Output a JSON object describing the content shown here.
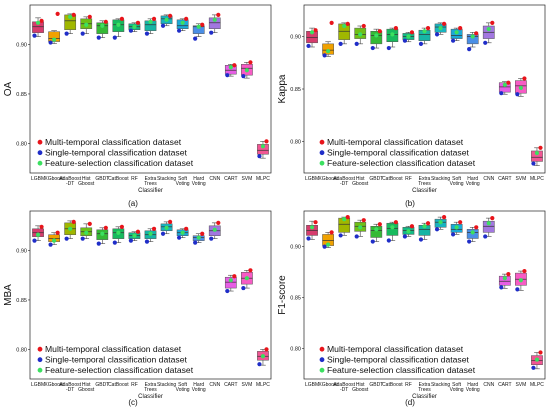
{
  "figure": {
    "legend": [
      {
        "label": "Multi-temporal classification dataset",
        "color": "#e8141b"
      },
      {
        "label": "Single-temporal classification dataset",
        "color": "#1f2dc8"
      },
      {
        "label": "Feature-selection  classification dataset",
        "color": "#3be060"
      }
    ]
  },
  "chart_data": [
    {
      "type": "box",
      "panel": "(a)",
      "ylabel": "OA",
      "xlabel": "Classifier",
      "ylim": [
        0.77,
        0.94
      ],
      "yticks": [
        "0.90",
        "0.85",
        "0.80"
      ],
      "categories": [
        "LGBM",
        "XGboost",
        "AdaBoost-DT",
        "Hist Gboost",
        "GBDT",
        "CatBoost",
        "RF",
        "Extra Trees",
        "Stacking",
        "Soft Voting",
        "Hard Voting",
        "CNN",
        "CART",
        "SVM",
        "MLPC"
      ],
      "box_colors": [
        "#d63c6d",
        "#f0a100",
        "#a0b700",
        "#6fbf16",
        "#35b936",
        "#18ba5e",
        "#13b987",
        "#16b5a5",
        "#19b3c0",
        "#1aa9d8",
        "#4a8fe6",
        "#a277e0",
        "#e75ee5",
        "#f75bc5",
        "#f15694"
      ],
      "boxes": [
        {
          "min": 0.908,
          "q1": 0.912,
          "median": 0.918,
          "q3": 0.923,
          "max": 0.927
        },
        {
          "min": 0.901,
          "q1": 0.903,
          "median": 0.906,
          "q3": 0.913,
          "max": 0.914
        },
        {
          "min": 0.911,
          "q1": 0.915,
          "median": 0.924,
          "q3": 0.93,
          "max": 0.931
        },
        {
          "min": 0.911,
          "q1": 0.916,
          "median": 0.921,
          "q3": 0.926,
          "max": 0.928
        },
        {
          "min": 0.907,
          "q1": 0.911,
          "median": 0.919,
          "q3": 0.922,
          "max": 0.924
        },
        {
          "min": 0.908,
          "q1": 0.913,
          "median": 0.92,
          "q3": 0.925,
          "max": 0.926
        },
        {
          "min": 0.913,
          "q1": 0.915,
          "median": 0.918,
          "q3": 0.921,
          "max": 0.922
        },
        {
          "min": 0.911,
          "q1": 0.914,
          "median": 0.92,
          "q3": 0.924,
          "max": 0.926
        },
        {
          "min": 0.919,
          "q1": 0.921,
          "median": 0.926,
          "q3": 0.929,
          "max": 0.93
        },
        {
          "min": 0.914,
          "q1": 0.916,
          "median": 0.919,
          "q3": 0.925,
          "max": 0.926
        },
        {
          "min": 0.908,
          "q1": 0.911,
          "median": 0.918,
          "q3": 0.919,
          "max": 0.921
        },
        {
          "min": 0.912,
          "q1": 0.916,
          "median": 0.922,
          "q3": 0.927,
          "max": 0.93
        },
        {
          "min": 0.868,
          "q1": 0.87,
          "median": 0.874,
          "q3": 0.879,
          "max": 0.88
        },
        {
          "min": 0.866,
          "q1": 0.869,
          "median": 0.876,
          "q3": 0.88,
          "max": 0.882
        },
        {
          "min": 0.785,
          "q1": 0.789,
          "median": 0.793,
          "q3": 0.799,
          "max": 0.802
        }
      ],
      "points": {
        "multi": [
          0.924,
          0.931,
          0.93,
          0.928,
          0.923,
          0.926,
          0.922,
          0.926,
          0.929,
          0.926,
          0.92,
          0.93,
          0.879,
          0.882,
          0.802
        ],
        "single": [
          0.909,
          0.902,
          0.911,
          0.911,
          0.907,
          0.907,
          0.914,
          0.911,
          0.919,
          0.914,
          0.906,
          0.912,
          0.869,
          0.868,
          0.787
        ],
        "feature": [
          0.922,
          0.905,
          0.928,
          0.92,
          0.919,
          0.92,
          0.918,
          0.923,
          0.925,
          0.922,
          0.918,
          0.925,
          0.877,
          0.874,
          0.797
        ]
      }
    },
    {
      "type": "box",
      "panel": "(b)",
      "ylabel": "Kappa",
      "xlabel": "Classifier",
      "ylim": [
        0.77,
        0.93
      ],
      "yticks": [
        "0.90",
        "0.85",
        "0.80"
      ],
      "categories": [
        "LGBM",
        "XGboost",
        "AdaBoost-DT",
        "Hist Gboost",
        "GBDT",
        "CatBoost",
        "RF",
        "Extra Trees",
        "Stacking",
        "Soft Voting",
        "Hard Voting",
        "CNN",
        "CART",
        "SVM",
        "MLPC"
      ],
      "box_colors": [
        "#d63c6d",
        "#f0a100",
        "#a0b700",
        "#6fbf16",
        "#35b936",
        "#18ba5e",
        "#13b987",
        "#16b5a5",
        "#19b3c0",
        "#1aa9d8",
        "#4a8fe6",
        "#a277e0",
        "#e75ee5",
        "#f75bc5",
        "#f15694"
      ],
      "boxes": [
        {
          "min": 0.89,
          "q1": 0.894,
          "median": 0.899,
          "q3": 0.905,
          "max": 0.908
        },
        {
          "min": 0.881,
          "q1": 0.883,
          "median": 0.887,
          "q3": 0.893,
          "max": 0.895
        },
        {
          "min": 0.893,
          "q1": 0.897,
          "median": 0.905,
          "q3": 0.912,
          "max": 0.913
        },
        {
          "min": 0.893,
          "q1": 0.898,
          "median": 0.902,
          "q3": 0.908,
          "max": 0.91
        },
        {
          "min": 0.889,
          "q1": 0.893,
          "median": 0.901,
          "q3": 0.905,
          "max": 0.907
        },
        {
          "min": 0.89,
          "q1": 0.895,
          "median": 0.902,
          "q3": 0.907,
          "max": 0.908
        },
        {
          "min": 0.895,
          "q1": 0.897,
          "median": 0.9,
          "q3": 0.903,
          "max": 0.904
        },
        {
          "min": 0.893,
          "q1": 0.896,
          "median": 0.902,
          "q3": 0.906,
          "max": 0.908
        },
        {
          "min": 0.902,
          "q1": 0.904,
          "median": 0.909,
          "q3": 0.912,
          "max": 0.913
        },
        {
          "min": 0.896,
          "q1": 0.898,
          "median": 0.901,
          "q3": 0.907,
          "max": 0.908
        },
        {
          "min": 0.89,
          "q1": 0.893,
          "median": 0.9,
          "q3": 0.902,
          "max": 0.904
        },
        {
          "min": 0.894,
          "q1": 0.898,
          "median": 0.904,
          "q3": 0.91,
          "max": 0.913
        },
        {
          "min": 0.845,
          "q1": 0.847,
          "median": 0.852,
          "q3": 0.856,
          "max": 0.857
        },
        {
          "min": 0.843,
          "q1": 0.846,
          "median": 0.853,
          "q3": 0.858,
          "max": 0.86
        },
        {
          "min": 0.777,
          "q1": 0.781,
          "median": 0.785,
          "q3": 0.791,
          "max": 0.794
        }
      ],
      "points": {
        "multi": [
          0.906,
          0.913,
          0.912,
          0.91,
          0.905,
          0.908,
          0.904,
          0.908,
          0.912,
          0.908,
          0.903,
          0.913,
          0.856,
          0.86,
          0.794
        ],
        "single": [
          0.891,
          0.882,
          0.893,
          0.893,
          0.889,
          0.889,
          0.896,
          0.893,
          0.902,
          0.896,
          0.888,
          0.894,
          0.846,
          0.845,
          0.779
        ],
        "feature": [
          0.904,
          0.886,
          0.91,
          0.902,
          0.901,
          0.902,
          0.9,
          0.905,
          0.908,
          0.904,
          0.9,
          0.907,
          0.854,
          0.851,
          0.789
        ]
      }
    },
    {
      "type": "box",
      "panel": "(c)",
      "ylabel": "MBA",
      "xlabel": "Classifier",
      "ylim": [
        0.77,
        0.94
      ],
      "yticks": [
        "0.90",
        "0.85",
        "0.80"
      ],
      "categories": [
        "LGBM",
        "XGboost",
        "AdaBoost-DT",
        "Hist Gboost",
        "GBDT",
        "CatBoost",
        "RF",
        "Extra Trees",
        "Stacking",
        "Soft Voting",
        "Hard Voting",
        "CNN",
        "CART",
        "SVM",
        "MLPC"
      ],
      "box_colors": [
        "#d63c6d",
        "#f0a100",
        "#a0b700",
        "#6fbf16",
        "#35b936",
        "#18ba5e",
        "#13b987",
        "#16b5a5",
        "#19b3c0",
        "#1aa9d8",
        "#4a8fe6",
        "#a277e0",
        "#e75ee5",
        "#f75bc5",
        "#f15694"
      ],
      "boxes": [
        {
          "min": 0.91,
          "q1": 0.914,
          "median": 0.918,
          "q3": 0.922,
          "max": 0.925
        },
        {
          "min": 0.906,
          "q1": 0.909,
          "median": 0.912,
          "q3": 0.916,
          "max": 0.918
        },
        {
          "min": 0.912,
          "q1": 0.916,
          "median": 0.922,
          "q3": 0.928,
          "max": 0.93
        },
        {
          "min": 0.912,
          "q1": 0.915,
          "median": 0.919,
          "q3": 0.923,
          "max": 0.927
        },
        {
          "min": 0.907,
          "q1": 0.911,
          "median": 0.917,
          "q3": 0.921,
          "max": 0.923
        },
        {
          "min": 0.908,
          "q1": 0.912,
          "median": 0.918,
          "q3": 0.922,
          "max": 0.924
        },
        {
          "min": 0.91,
          "q1": 0.912,
          "median": 0.915,
          "q3": 0.918,
          "max": 0.919
        },
        {
          "min": 0.909,
          "q1": 0.912,
          "median": 0.916,
          "q3": 0.92,
          "max": 0.922
        },
        {
          "min": 0.917,
          "q1": 0.92,
          "median": 0.924,
          "q3": 0.927,
          "max": 0.929
        },
        {
          "min": 0.913,
          "q1": 0.915,
          "median": 0.918,
          "q3": 0.921,
          "max": 0.922
        },
        {
          "min": 0.908,
          "q1": 0.91,
          "median": 0.913,
          "q3": 0.915,
          "max": 0.917
        },
        {
          "min": 0.912,
          "q1": 0.915,
          "median": 0.92,
          "q3": 0.925,
          "max": 0.928
        },
        {
          "min": 0.859,
          "q1": 0.862,
          "median": 0.868,
          "q3": 0.873,
          "max": 0.875
        },
        {
          "min": 0.862,
          "q1": 0.866,
          "median": 0.872,
          "q3": 0.878,
          "max": 0.88
        },
        {
          "min": 0.784,
          "q1": 0.789,
          "median": 0.793,
          "q3": 0.798,
          "max": 0.8
        }
      ],
      "points": {
        "multi": [
          0.924,
          0.918,
          0.929,
          0.927,
          0.923,
          0.924,
          0.919,
          0.922,
          0.929,
          0.922,
          0.917,
          0.928,
          0.874,
          0.88,
          0.8
        ],
        "single": [
          0.91,
          0.906,
          0.912,
          0.912,
          0.907,
          0.908,
          0.91,
          0.909,
          0.917,
          0.913,
          0.908,
          0.912,
          0.859,
          0.862,
          0.785
        ],
        "feature": [
          0.916,
          0.91,
          0.922,
          0.918,
          0.917,
          0.918,
          0.915,
          0.917,
          0.923,
          0.918,
          0.913,
          0.921,
          0.87,
          0.872,
          0.793
        ]
      }
    },
    {
      "type": "box",
      "panel": "(d)",
      "ylabel": "F1-score",
      "xlabel": "Classifier",
      "ylim": [
        0.77,
        0.935
      ],
      "yticks": [
        "0.90",
        "0.85",
        "0.80"
      ],
      "categories": [
        "LGBM",
        "XGboost",
        "AdaBoost-DT",
        "Hist Gboost",
        "GBDT",
        "CatBoost",
        "RF",
        "Extra Trees",
        "Stacking",
        "Soft Voting",
        "Hard Voting",
        "CNN",
        "CART",
        "SVM",
        "MLPC"
      ],
      "box_colors": [
        "#d63c6d",
        "#f0a100",
        "#a0b700",
        "#6fbf16",
        "#35b936",
        "#18ba5e",
        "#13b987",
        "#16b5a5",
        "#19b3c0",
        "#1aa9d8",
        "#4a8fe6",
        "#a277e0",
        "#e75ee5",
        "#f75bc5",
        "#f15694"
      ],
      "boxes": [
        {
          "min": 0.907,
          "q1": 0.911,
          "median": 0.916,
          "q3": 0.921,
          "max": 0.925
        },
        {
          "min": 0.899,
          "q1": 0.901,
          "median": 0.906,
          "q3": 0.912,
          "max": 0.914
        },
        {
          "min": 0.911,
          "q1": 0.914,
          "median": 0.922,
          "q3": 0.928,
          "max": 0.929
        },
        {
          "min": 0.91,
          "q1": 0.915,
          "median": 0.92,
          "q3": 0.924,
          "max": 0.926
        },
        {
          "min": 0.905,
          "q1": 0.909,
          "median": 0.916,
          "q3": 0.92,
          "max": 0.922
        },
        {
          "min": 0.906,
          "q1": 0.911,
          "median": 0.918,
          "q3": 0.923,
          "max": 0.924
        },
        {
          "min": 0.91,
          "q1": 0.912,
          "median": 0.916,
          "q3": 0.919,
          "max": 0.92
        },
        {
          "min": 0.907,
          "q1": 0.911,
          "median": 0.917,
          "q3": 0.921,
          "max": 0.923
        },
        {
          "min": 0.917,
          "q1": 0.919,
          "median": 0.924,
          "q3": 0.927,
          "max": 0.929
        },
        {
          "min": 0.912,
          "q1": 0.914,
          "median": 0.917,
          "q3": 0.922,
          "max": 0.924
        },
        {
          "min": 0.905,
          "q1": 0.908,
          "median": 0.914,
          "q3": 0.917,
          "max": 0.919
        },
        {
          "min": 0.91,
          "q1": 0.914,
          "median": 0.92,
          "q3": 0.925,
          "max": 0.928
        },
        {
          "min": 0.859,
          "q1": 0.862,
          "median": 0.866,
          "q3": 0.871,
          "max": 0.873
        },
        {
          "min": 0.857,
          "q1": 0.862,
          "median": 0.868,
          "q3": 0.874,
          "max": 0.876
        },
        {
          "min": 0.78,
          "q1": 0.784,
          "median": 0.788,
          "q3": 0.793,
          "max": 0.796
        }
      ],
      "points": {
        "multi": [
          0.924,
          0.914,
          0.929,
          0.926,
          0.922,
          0.924,
          0.92,
          0.923,
          0.929,
          0.924,
          0.919,
          0.928,
          0.873,
          0.876,
          0.796
        ],
        "single": [
          0.908,
          0.9,
          0.911,
          0.91,
          0.905,
          0.906,
          0.91,
          0.907,
          0.917,
          0.912,
          0.905,
          0.91,
          0.86,
          0.858,
          0.781
        ],
        "feature": [
          0.919,
          0.902,
          0.927,
          0.919,
          0.917,
          0.919,
          0.915,
          0.92,
          0.924,
          0.919,
          0.914,
          0.923,
          0.869,
          0.867,
          0.789
        ]
      }
    }
  ]
}
